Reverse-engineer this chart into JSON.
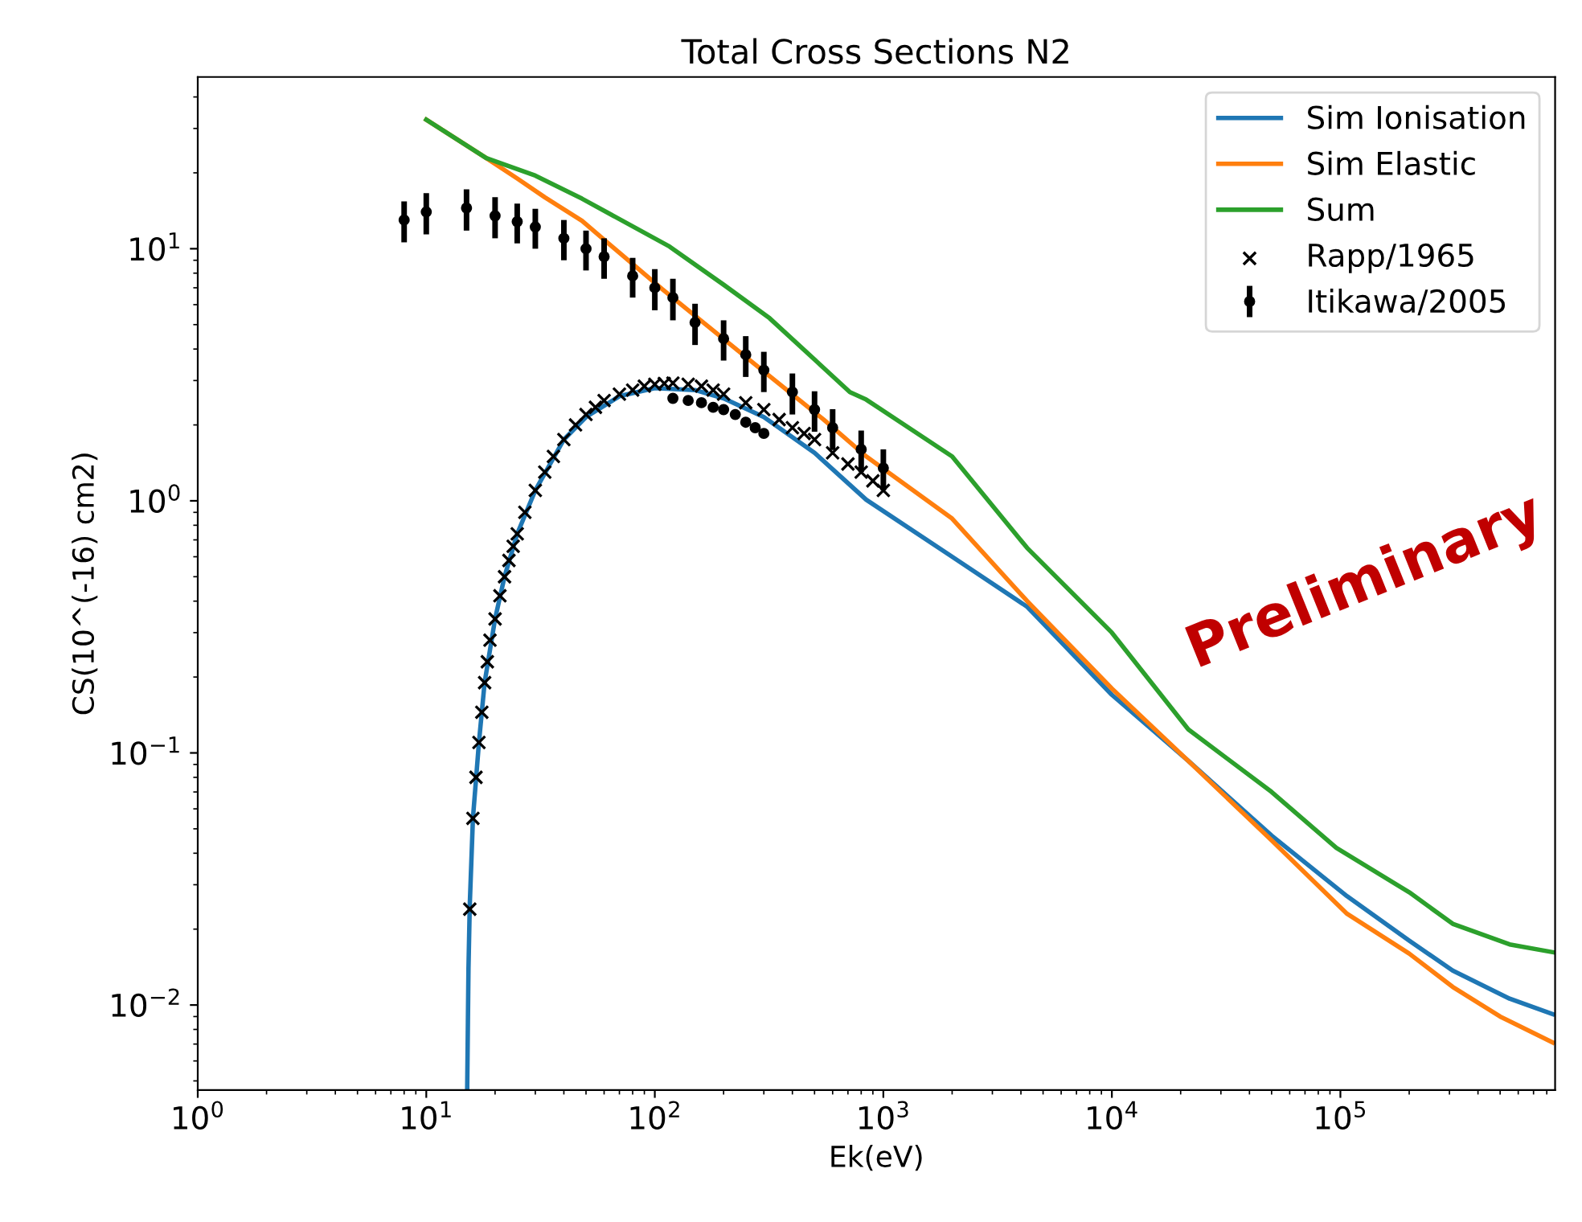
{
  "chart_data": {
    "type": "line",
    "title": "Total Cross Sections N2",
    "xlabel": "Ek(eV)",
    "ylabel": "CS(10^(-16) cm2)",
    "log": "xy",
    "grid": false,
    "legend": "top right",
    "xlim": [
      1,
      870000
    ],
    "ylim": [
      0.0046,
      48
    ],
    "xticks": [
      {
        "value": 1,
        "label": "10$^{0}$"
      },
      {
        "value": 10,
        "label": "10$^{1}$"
      },
      {
        "value": 100,
        "label": "10$^{2}$"
      },
      {
        "value": 1000,
        "label": "10$^{3}$"
      },
      {
        "value": 10000,
        "label": "10$^{4}$"
      },
      {
        "value": 100000,
        "label": "10$^{5}$"
      }
    ],
    "yticks": [
      {
        "value": 0.01,
        "label": "10$^{−2}$"
      },
      {
        "value": 0.1,
        "label": "10$^{−1}$"
      },
      {
        "value": 1,
        "label": "10$^{0}$"
      },
      {
        "value": 10,
        "label": "10$^{1}$"
      }
    ],
    "annotations": [
      "Preliminary"
    ],
    "series": [
      {
        "name": "Sim Ionisation",
        "color": "#1f77b4",
        "x": [
          15.1,
          15.3,
          15.5,
          16,
          17,
          18,
          20,
          22,
          25,
          30,
          40,
          50,
          70,
          100,
          150,
          200,
          300,
          500,
          842,
          2000,
          4260,
          10000,
          21600,
          50000,
          107000,
          200000,
          310000,
          550000,
          850000
        ],
        "values": [
          0.0046,
          0.014,
          0.025,
          0.055,
          0.11,
          0.19,
          0.34,
          0.5,
          0.74,
          1.1,
          1.75,
          2.15,
          2.6,
          2.8,
          2.75,
          2.55,
          2.15,
          1.55,
          1.01,
          0.6,
          0.38,
          0.17,
          0.093,
          0.047,
          0.027,
          0.018,
          0.0137,
          0.0106,
          0.0092
        ]
      },
      {
        "name": "Sim Elastic",
        "color": "#ff7f0e",
        "x": [
          10,
          18.3,
          25,
          33,
          48,
          108,
          243,
          548,
          842,
          2000,
          4260,
          10000,
          21600,
          50000,
          107000,
          200000,
          310000,
          500000,
          850000
        ],
        "values": [
          32.5,
          22.9,
          19,
          16,
          12.9,
          6.9,
          3.8,
          2.1,
          1.5,
          0.85,
          0.4,
          0.18,
          0.093,
          0.045,
          0.023,
          0.016,
          0.0118,
          0.009,
          0.0071
        ]
      },
      {
        "name": "Sum",
        "color": "#2ca02c",
        "x": [
          10,
          18.3,
          30,
          48,
          116,
          200,
          318,
          714,
          842,
          2000,
          4260,
          10000,
          21600,
          50000,
          96000,
          200000,
          310000,
          550000,
          850000
        ],
        "values": [
          32.5,
          22.9,
          19.5,
          15.8,
          10.2,
          7.2,
          5.3,
          2.7,
          2.52,
          1.5,
          0.65,
          0.3,
          0.124,
          0.07,
          0.042,
          0.028,
          0.021,
          0.0174,
          0.0162
        ]
      },
      {
        "name": "Rapp/1965",
        "type": "scatter",
        "marker": "cross",
        "color": "#000000",
        "x": [
          15.5,
          16,
          16.5,
          17,
          17.5,
          18,
          18.5,
          19,
          20,
          21,
          22,
          23,
          24,
          25,
          27,
          30,
          33,
          36,
          40,
          45,
          50,
          55,
          60,
          70,
          80,
          90,
          100,
          110,
          120,
          140,
          160,
          180,
          200,
          250,
          300,
          350,
          400,
          450,
          500,
          600,
          700,
          800,
          900,
          1000
        ],
        "values": [
          0.024,
          0.055,
          0.08,
          0.11,
          0.145,
          0.19,
          0.23,
          0.28,
          0.34,
          0.42,
          0.5,
          0.58,
          0.66,
          0.74,
          0.9,
          1.1,
          1.3,
          1.5,
          1.75,
          2.0,
          2.2,
          2.35,
          2.5,
          2.65,
          2.75,
          2.85,
          2.9,
          2.92,
          2.93,
          2.9,
          2.85,
          2.75,
          2.65,
          2.45,
          2.3,
          2.1,
          1.95,
          1.85,
          1.75,
          1.55,
          1.4,
          1.3,
          1.2,
          1.1
        ]
      },
      {
        "name": "Itikawa/2005",
        "type": "scatter",
        "marker": "circle",
        "color": "#000000",
        "x": [
          8,
          10,
          15,
          20,
          25,
          30,
          40,
          50,
          60,
          80,
          100,
          120,
          150,
          200,
          250,
          300,
          400,
          500,
          600,
          800,
          1000,
          120,
          140,
          160,
          180,
          200,
          225,
          250,
          275,
          300
        ],
        "values": [
          13,
          14,
          14.5,
          13.5,
          12.8,
          12.2,
          11,
          10,
          9.3,
          7.8,
          7,
          6.4,
          5.1,
          4.4,
          3.8,
          3.3,
          2.7,
          2.3,
          1.95,
          1.6,
          1.35,
          2.55,
          2.5,
          2.45,
          2.35,
          2.3,
          2.2,
          2.05,
          1.95,
          1.85
        ],
        "errors": [
          2.4,
          2.6,
          2.7,
          2.5,
          2.3,
          2.2,
          2,
          1.8,
          1.7,
          1.4,
          1.3,
          1.2,
          0.95,
          0.8,
          0.7,
          0.6,
          0.5,
          0.42,
          0.36,
          0.3,
          0.25,
          null,
          null,
          null,
          null,
          null,
          null,
          null,
          null,
          null
        ]
      }
    ]
  }
}
